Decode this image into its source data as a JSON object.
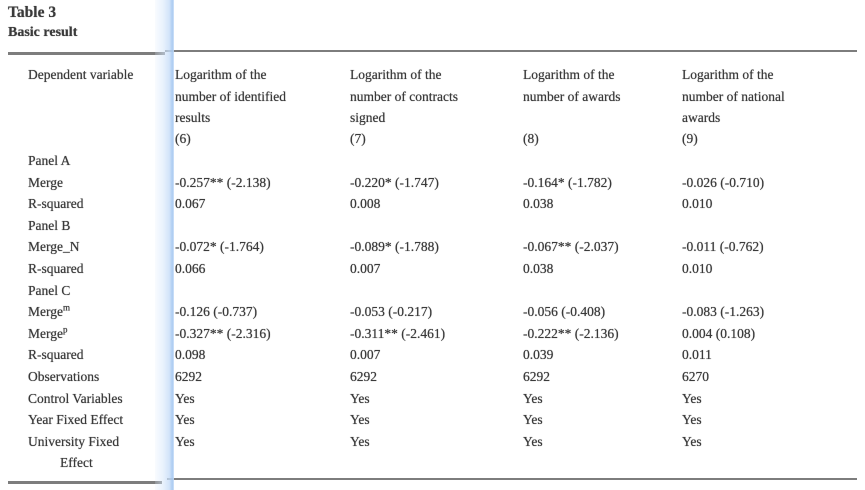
{
  "colors": {
    "text": "#3a3a3a",
    "rule": "#7d7d7d",
    "highlight_band": "#cfe2f8"
  },
  "table": {
    "title": "Table 3",
    "subtitle": "Basic result",
    "header": {
      "label": "Dependent variable",
      "columns": [
        {
          "lines": [
            "Logarithm of the",
            "number of identified",
            "results"
          ],
          "number": "(6)"
        },
        {
          "lines": [
            "Logarithm of the",
            "number of contracts",
            "signed"
          ],
          "number": "(7)"
        },
        {
          "lines": [
            "Logarithm of the",
            "number of awards"
          ],
          "number": "(8)"
        },
        {
          "lines": [
            "Logarithm of the",
            "number of national",
            "awards"
          ],
          "number": "(9)"
        }
      ]
    },
    "rows": [
      {
        "type": "section",
        "label": "Panel A",
        "cells": [
          "",
          "",
          "",
          ""
        ]
      },
      {
        "type": "data",
        "label": "Merge",
        "cells": [
          "-0.257** (-2.138)",
          "-0.220* (-1.747)",
          "-0.164* (-1.782)",
          "-0.026 (-0.710)"
        ]
      },
      {
        "type": "data",
        "label": "R-squared",
        "cells": [
          "0.067",
          "0.008",
          "0.038",
          "0.010"
        ]
      },
      {
        "type": "section",
        "label": "Panel B",
        "cells": [
          "",
          "",
          "",
          ""
        ]
      },
      {
        "type": "data",
        "label": "Merge_N",
        "cells": [
          "-0.072* (-1.764)",
          "-0.089* (-1.788)",
          "-0.067** (-2.037)",
          "-0.011 (-0.762)"
        ]
      },
      {
        "type": "data",
        "label": "R-squared",
        "cells": [
          "0.066",
          "0.007",
          "0.038",
          "0.010"
        ]
      },
      {
        "type": "section",
        "label": "Panel C",
        "cells": [
          "",
          "",
          "",
          ""
        ]
      },
      {
        "type": "data",
        "label": "Merge",
        "label_superscript": "m",
        "cells": [
          "-0.126 (-0.737)",
          "-0.053 (-0.217)",
          "-0.056 (-0.408)",
          "-0.083 (-1.263)"
        ]
      },
      {
        "type": "data",
        "label": "Merge",
        "label_superscript": "p",
        "cells": [
          "-0.327** (-2.316)",
          "-0.311** (-2.461)",
          "-0.222** (-2.136)",
          "0.004 (0.108)"
        ]
      },
      {
        "type": "data",
        "label": "R-squared",
        "cells": [
          "0.098",
          "0.007",
          "0.039",
          "0.011"
        ]
      },
      {
        "type": "data",
        "label": "Observations",
        "cells": [
          "6292",
          "6292",
          "6292",
          "6270"
        ]
      },
      {
        "type": "data",
        "label": "Control Variables",
        "cells": [
          "Yes",
          "Yes",
          "Yes",
          "Yes"
        ]
      },
      {
        "type": "data",
        "label": "Year Fixed Effect",
        "cells": [
          "Yes",
          "Yes",
          "Yes",
          "Yes"
        ]
      },
      {
        "type": "data",
        "label": "University Fixed Effect",
        "cells": [
          "Yes",
          "Yes",
          "Yes",
          "Yes"
        ]
      }
    ]
  }
}
